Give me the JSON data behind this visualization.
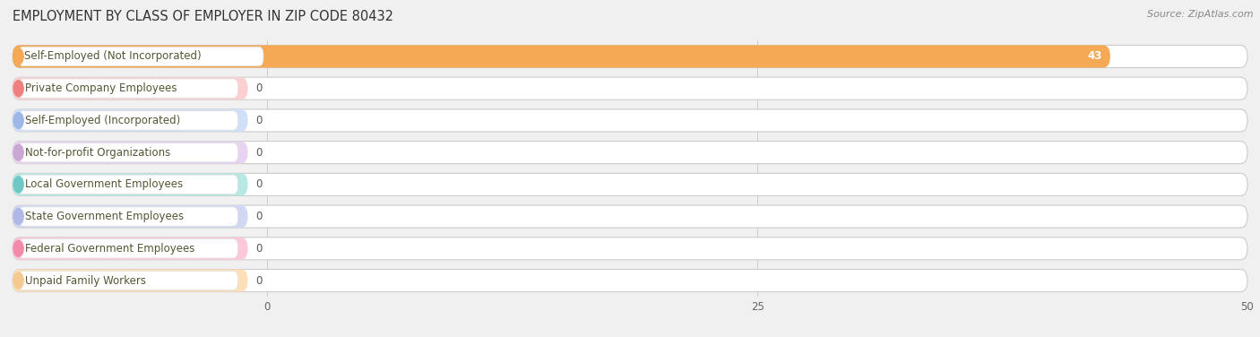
{
  "title": "EMPLOYMENT BY CLASS OF EMPLOYER IN ZIP CODE 80432",
  "source": "Source: ZipAtlas.com",
  "categories": [
    "Self-Employed (Not Incorporated)",
    "Private Company Employees",
    "Self-Employed (Incorporated)",
    "Not-for-profit Organizations",
    "Local Government Employees",
    "State Government Employees",
    "Federal Government Employees",
    "Unpaid Family Workers"
  ],
  "values": [
    43,
    0,
    0,
    0,
    0,
    0,
    0,
    0
  ],
  "bar_colors": [
    "#f5a955",
    "#f08080",
    "#9db8e8",
    "#c9a8d4",
    "#6ec9c4",
    "#b0b8e8",
    "#f48aaa",
    "#f5c990"
  ],
  "bar_colors_light": [
    "#fde3b8",
    "#fcd0d0",
    "#d0e0f8",
    "#e8d4f0",
    "#b8e8e4",
    "#d0d8f4",
    "#fdc8dc",
    "#fde0b8"
  ],
  "xlim_data": [
    0,
    50
  ],
  "xticks": [
    0,
    25,
    50
  ],
  "background_color": "#f0f0f0",
  "title_fontsize": 10.5,
  "label_fontsize": 8.5,
  "value_fontsize": 8.5,
  "source_fontsize": 8
}
